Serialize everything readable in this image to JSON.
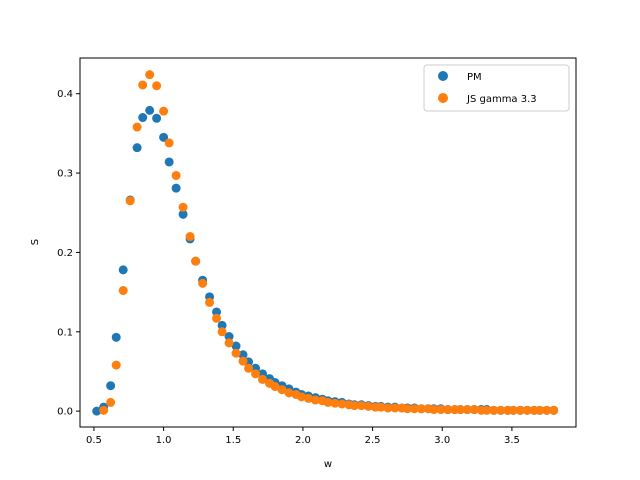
{
  "chart_data": {
    "type": "scatter",
    "title": "",
    "xlabel": "w",
    "ylabel": "S",
    "xlim": [
      0.4,
      3.96
    ],
    "ylim": [
      -0.02,
      0.445
    ],
    "xticks": [
      0.5,
      1.0,
      1.5,
      2.0,
      2.5,
      3.0,
      3.5
    ],
    "xtick_labels": [
      "0.5",
      "1.0",
      "1.5",
      "2.0",
      "2.5",
      "3.0",
      "3.5"
    ],
    "yticks": [
      0.0,
      0.1,
      0.2,
      0.3,
      0.4
    ],
    "ytick_labels": [
      "0.0",
      "0.1",
      "0.2",
      "0.3",
      "0.4"
    ],
    "grid": false,
    "legend_position": "top-right",
    "series": [
      {
        "name": "PM",
        "color": "#1f77b4",
        "points": [
          [
            0.52,
            0.0
          ],
          [
            0.57,
            0.005
          ],
          [
            0.62,
            0.032
          ],
          [
            0.66,
            0.093
          ],
          [
            0.71,
            0.178
          ],
          [
            0.76,
            0.266
          ],
          [
            0.81,
            0.332
          ],
          [
            0.85,
            0.37
          ],
          [
            0.9,
            0.379
          ],
          [
            0.95,
            0.369
          ],
          [
            1.0,
            0.345
          ],
          [
            1.04,
            0.314
          ],
          [
            1.09,
            0.281
          ],
          [
            1.14,
            0.248
          ],
          [
            1.19,
            0.217
          ],
          [
            1.23,
            0.189
          ],
          [
            1.28,
            0.165
          ],
          [
            1.33,
            0.144
          ],
          [
            1.38,
            0.125
          ],
          [
            1.42,
            0.108
          ],
          [
            1.47,
            0.094
          ],
          [
            1.52,
            0.082
          ],
          [
            1.57,
            0.071
          ],
          [
            1.61,
            0.062
          ],
          [
            1.66,
            0.054
          ],
          [
            1.71,
            0.047
          ],
          [
            1.76,
            0.041
          ],
          [
            1.8,
            0.036
          ],
          [
            1.85,
            0.032
          ],
          [
            1.9,
            0.028
          ],
          [
            1.95,
            0.024
          ],
          [
            1.99,
            0.021
          ],
          [
            2.04,
            0.019
          ],
          [
            2.09,
            0.017
          ],
          [
            2.14,
            0.015
          ],
          [
            2.18,
            0.013
          ],
          [
            2.23,
            0.012
          ],
          [
            2.28,
            0.011
          ],
          [
            2.33,
            0.009
          ],
          [
            2.37,
            0.008
          ],
          [
            2.42,
            0.008
          ],
          [
            2.47,
            0.007
          ],
          [
            2.52,
            0.006
          ],
          [
            2.56,
            0.006
          ],
          [
            2.61,
            0.005
          ],
          [
            2.66,
            0.005
          ],
          [
            2.71,
            0.004
          ],
          [
            2.75,
            0.004
          ],
          [
            2.8,
            0.004
          ],
          [
            2.85,
            0.003
          ],
          [
            2.9,
            0.003
          ],
          [
            2.94,
            0.003
          ],
          [
            2.99,
            0.003
          ],
          [
            3.04,
            0.002
          ],
          [
            3.09,
            0.002
          ],
          [
            3.13,
            0.002
          ],
          [
            3.18,
            0.002
          ],
          [
            3.23,
            0.002
          ],
          [
            3.28,
            0.002
          ],
          [
            3.32,
            0.002
          ],
          [
            3.37,
            0.001
          ],
          [
            3.42,
            0.001
          ],
          [
            3.47,
            0.001
          ],
          [
            3.51,
            0.001
          ],
          [
            3.56,
            0.001
          ],
          [
            3.61,
            0.001
          ],
          [
            3.66,
            0.001
          ],
          [
            3.7,
            0.001
          ],
          [
            3.75,
            0.001
          ],
          [
            3.8,
            0.001
          ]
        ]
      },
      {
        "name": "JS gamma 3.3",
        "color": "#ff7f0e",
        "points": [
          [
            0.57,
            0.001
          ],
          [
            0.62,
            0.011
          ],
          [
            0.66,
            0.058
          ],
          [
            0.71,
            0.152
          ],
          [
            0.76,
            0.265
          ],
          [
            0.81,
            0.358
          ],
          [
            0.85,
            0.411
          ],
          [
            0.9,
            0.424
          ],
          [
            0.95,
            0.41
          ],
          [
            1.0,
            0.378
          ],
          [
            1.04,
            0.338
          ],
          [
            1.09,
            0.297
          ],
          [
            1.14,
            0.257
          ],
          [
            1.19,
            0.22
          ],
          [
            1.23,
            0.189
          ],
          [
            1.28,
            0.161
          ],
          [
            1.33,
            0.137
          ],
          [
            1.38,
            0.117
          ],
          [
            1.42,
            0.1
          ],
          [
            1.47,
            0.086
          ],
          [
            1.52,
            0.073
          ],
          [
            1.57,
            0.063
          ],
          [
            1.61,
            0.054
          ],
          [
            1.66,
            0.047
          ],
          [
            1.71,
            0.04
          ],
          [
            1.76,
            0.035
          ],
          [
            1.8,
            0.031
          ],
          [
            1.85,
            0.027
          ],
          [
            1.9,
            0.023
          ],
          [
            1.95,
            0.021
          ],
          [
            1.99,
            0.018
          ],
          [
            2.04,
            0.016
          ],
          [
            2.09,
            0.014
          ],
          [
            2.14,
            0.013
          ],
          [
            2.18,
            0.011
          ],
          [
            2.23,
            0.01
          ],
          [
            2.28,
            0.009
          ],
          [
            2.33,
            0.008
          ],
          [
            2.37,
            0.007
          ],
          [
            2.42,
            0.007
          ],
          [
            2.47,
            0.006
          ],
          [
            2.52,
            0.005
          ],
          [
            2.56,
            0.005
          ],
          [
            2.61,
            0.004
          ],
          [
            2.66,
            0.004
          ],
          [
            2.71,
            0.004
          ],
          [
            2.75,
            0.003
          ],
          [
            2.8,
            0.003
          ],
          [
            2.85,
            0.003
          ],
          [
            2.9,
            0.003
          ],
          [
            2.94,
            0.002
          ],
          [
            2.99,
            0.002
          ],
          [
            3.04,
            0.002
          ],
          [
            3.09,
            0.002
          ],
          [
            3.13,
            0.002
          ],
          [
            3.18,
            0.002
          ],
          [
            3.23,
            0.002
          ],
          [
            3.28,
            0.001
          ],
          [
            3.32,
            0.001
          ],
          [
            3.37,
            0.001
          ],
          [
            3.42,
            0.001
          ],
          [
            3.47,
            0.001
          ],
          [
            3.51,
            0.001
          ],
          [
            3.56,
            0.001
          ],
          [
            3.61,
            0.001
          ],
          [
            3.66,
            0.001
          ],
          [
            3.7,
            0.001
          ],
          [
            3.75,
            0.001
          ],
          [
            3.8,
            0.001
          ]
        ]
      }
    ]
  }
}
